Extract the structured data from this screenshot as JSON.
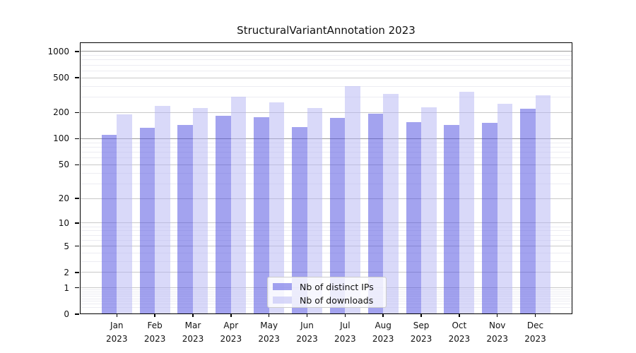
{
  "title": "StructuralVariantAnnotation 2023",
  "chart_data": {
    "type": "bar",
    "title": "StructuralVariantAnnotation 2023",
    "y_scale": "log1p",
    "categories": [
      "Jan",
      "Feb",
      "Mar",
      "Apr",
      "May",
      "Jun",
      "Jul",
      "Aug",
      "Sep",
      "Oct",
      "Nov",
      "Dec"
    ],
    "category_year": "2023",
    "series": [
      {
        "name": "Nb of distinct IPs",
        "color": "rgba(71,71,223,0.5)",
        "values": [
          111,
          134,
          145,
          183,
          178,
          137,
          173,
          195,
          155,
          143,
          152,
          222
        ]
      },
      {
        "name": "Nb of downloads",
        "color": "rgba(179,179,243,0.5)",
        "values": [
          192,
          239,
          225,
          305,
          262,
          227,
          400,
          326,
          230,
          345,
          251,
          316
        ]
      }
    ],
    "y_ticks": [
      0,
      1,
      2,
      5,
      10,
      20,
      50,
      100,
      200,
      500,
      1000
    ],
    "y_minor_gridlines": [
      0.2,
      0.3,
      0.4,
      0.5,
      0.6,
      0.7,
      0.8,
      0.9,
      3,
      4,
      6,
      7,
      8,
      9,
      30,
      40,
      60,
      70,
      80,
      90,
      300,
      400,
      600,
      700,
      800,
      900
    ],
    "emphasized_gridlines": [
      100,
      1000
    ],
    "ylim": [
      0,
      1250
    ],
    "grid": true,
    "legend_position": "lower center"
  },
  "legend": {
    "items": [
      {
        "label": "Nb of distinct IPs"
      },
      {
        "label": "Nb of downloads"
      }
    ]
  },
  "colors": {
    "bar_distinct_ips": "rgba(71,71,223,0.5)",
    "bar_downloads": "rgba(179,179,243,0.5)",
    "grid_major": "#c9c9c9",
    "grid_emphasized": "#9a9a9a",
    "grid_minor": "#ececf2",
    "spine": "#000000",
    "text": "#111111",
    "background": "#ffffff",
    "legend_border": "#cccccc",
    "legend_background": "rgba(255,255,255,0.8)"
  }
}
